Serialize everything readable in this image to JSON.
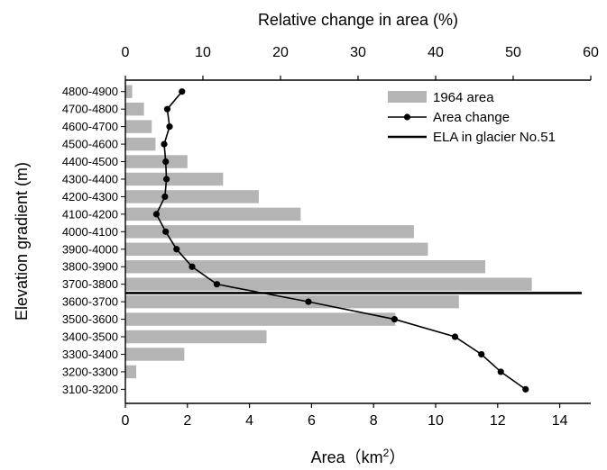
{
  "chart_data": {
    "type": "bar",
    "ylabel": "Elevation gradient (m)",
    "xlabel": "Area（km²）",
    "x2label": "Relative change in area (%)",
    "xlim": [
      0,
      15
    ],
    "x2lim": [
      0,
      60
    ],
    "xticks": [
      "0",
      "2",
      "4",
      "6",
      "8",
      "10",
      "12",
      "14"
    ],
    "x2ticks": [
      "0",
      "10",
      "20",
      "30",
      "40",
      "50",
      "60"
    ],
    "categories": [
      "4800-4900",
      "4700-4800",
      "4600-4700",
      "4500-4600",
      "4400-4500",
      "4300-4400",
      "4200-4300",
      "4100-4200",
      "4000-4100",
      "3900-4000",
      "3800-3900",
      "3700-3800",
      "3600-3700",
      "3500-3600",
      "3400-3500",
      "3300-3400",
      "3200-3300",
      "3100-3200"
    ],
    "series": [
      {
        "name": "1964 area",
        "type": "bar",
        "axis": "bottom",
        "color": "#b4b4b4",
        "values": [
          0.22,
          0.6,
          0.85,
          0.97,
          2.0,
          3.15,
          4.3,
          5.65,
          9.3,
          9.75,
          11.6,
          13.1,
          10.75,
          8.7,
          4.55,
          1.9,
          0.35,
          0
        ]
      },
      {
        "name": "Area change",
        "type": "line",
        "axis": "top",
        "color": "#000000",
        "values": [
          7.3,
          5.4,
          5.7,
          5.0,
          5.2,
          5.3,
          5.1,
          4.0,
          5.2,
          6.6,
          8.6,
          11.8,
          23.6,
          34.7,
          42.5,
          45.9,
          48.4,
          51.6
        ]
      },
      {
        "name": "ELA in glacier No.51",
        "type": "reference-line",
        "at_between": [
          "3700-3800",
          "3600-3700"
        ]
      }
    ],
    "legend_position": "top-right",
    "grid": false
  }
}
